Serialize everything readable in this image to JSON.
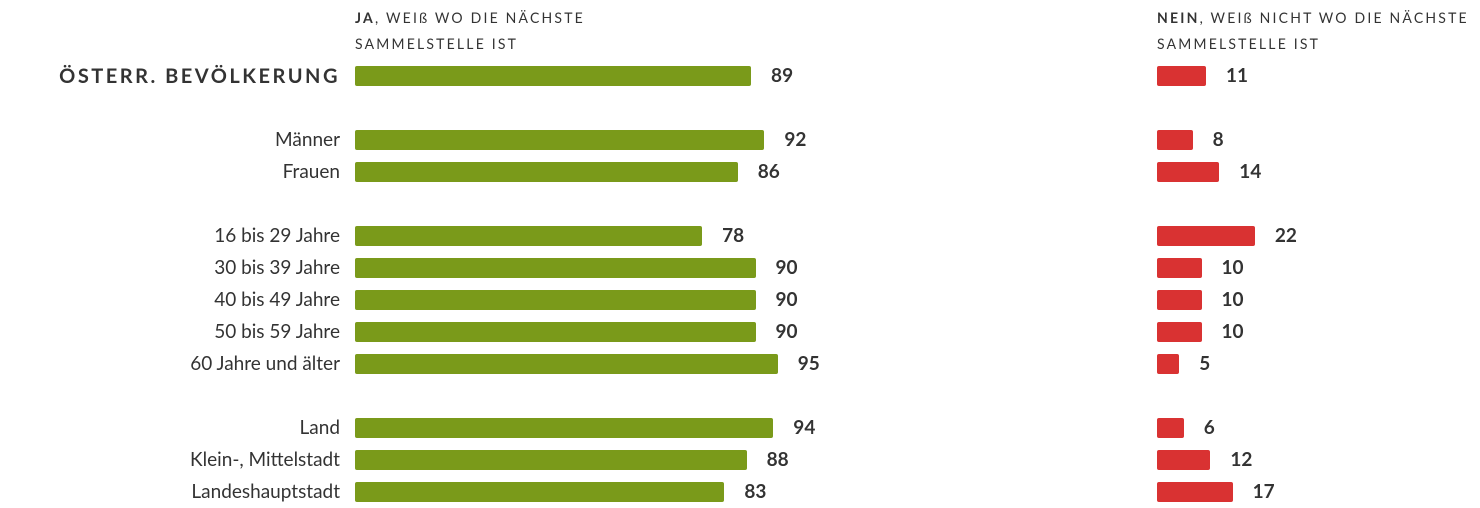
{
  "chart_data": {
    "type": "bar",
    "categories": [
      "ÖSTERR. BEVÖLKERUNG",
      "Männer",
      "Frauen",
      "16 bis 29 Jahre",
      "30 bis 39 Jahre",
      "40 bis 49 Jahre",
      "50 bis 59 Jahre",
      "60 Jahre und älter",
      "Land",
      "Klein-, Mittelstadt",
      "Landeshauptstadt"
    ],
    "series": [
      {
        "name": "JA, WEIß WO DIE NÄCHSTE SAMMELSTELLE IST",
        "color": "#7a9a1a",
        "values": [
          89,
          92,
          86,
          78,
          90,
          90,
          90,
          95,
          94,
          88,
          83
        ]
      },
      {
        "name": "NEIN, WEIß NICHT WO DIE NÄCHSTE SAMMELSTELLE IST",
        "color": "#d93232",
        "values": [
          11,
          8,
          14,
          22,
          10,
          10,
          10,
          5,
          6,
          12,
          17
        ]
      }
    ]
  }
}
